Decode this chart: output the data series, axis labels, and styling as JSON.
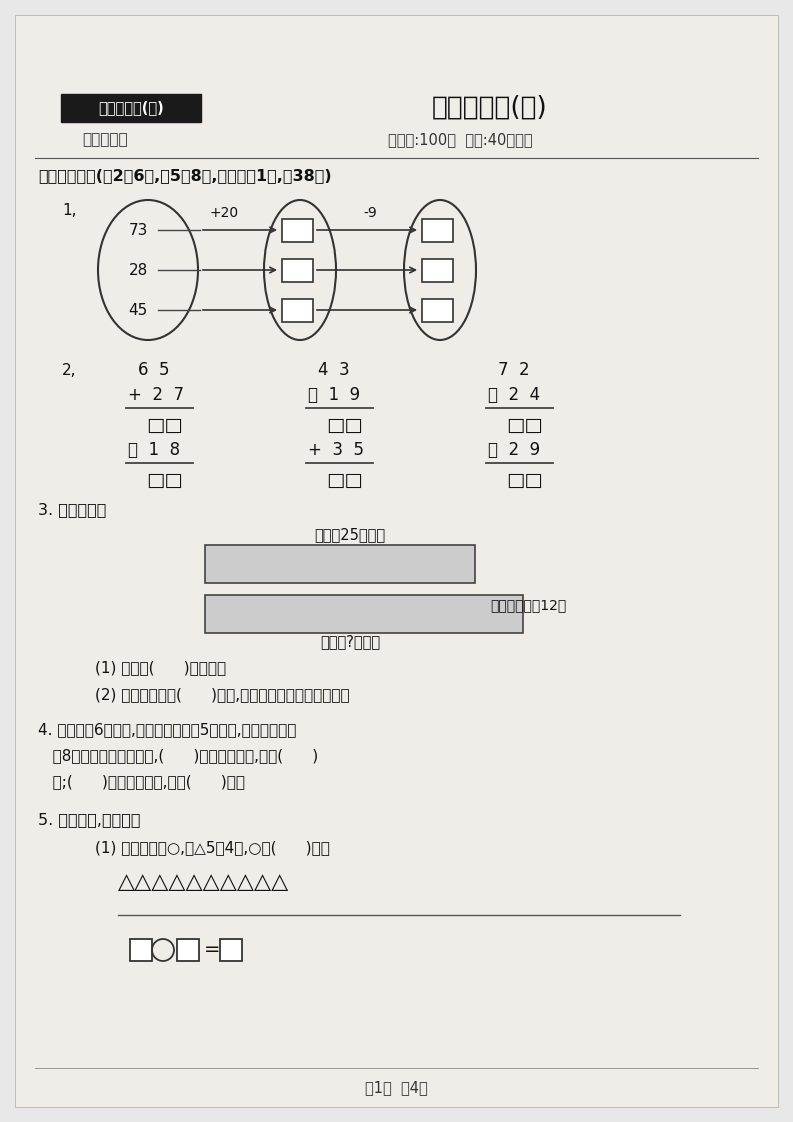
{
  "bg_color": "#e8e8e8",
  "page_bg": "#f0ede8",
  "title_box_text": "二年级数学(上)",
  "title_main": "分类测评卷(一)",
  "subtitle_left": "（江苏版）",
  "subtitle_right": "（满分:100分  时间:40分钟）",
  "section1_header": "一、填一填。(第2题6分,第5题8分,其余每空1分,八38分)",
  "q1_numbers": [
    "73",
    "28",
    "45"
  ],
  "q1_op1": "+20",
  "q1_op2": "-9",
  "q3_label": "3. 看图填空。",
  "q3_bar1_label": "小丽有25张卡片",
  "q3_bar2_label": "小明比小丽多12张",
  "q3_bar3_label": "小明有?张卡片",
  "q3_sub1": "(1) 小明有(      )张卡片。",
  "q3_sub2": "(2) 小明送给小丽(      )张后,两人的卡片张数就同样多。",
  "q4_l1": "4. 小文写〦6个大字,小丽比小文多劙5个大字,小明比小文少",
  "q4_l2": "   劙8个大字。三个人相比,(      )写的大字最多,写了(      )",
  "q4_l3": "   个;(      )写的大字最少,写了(      )个。",
  "q5_label": "5. 先画一画,再解答。",
  "q5_sub1": "(1) 在横线上画○,比△5个4个,○有(      )个。",
  "q5_triangles": "△△△△△△△△△△",
  "footer": "第1页  八4页"
}
